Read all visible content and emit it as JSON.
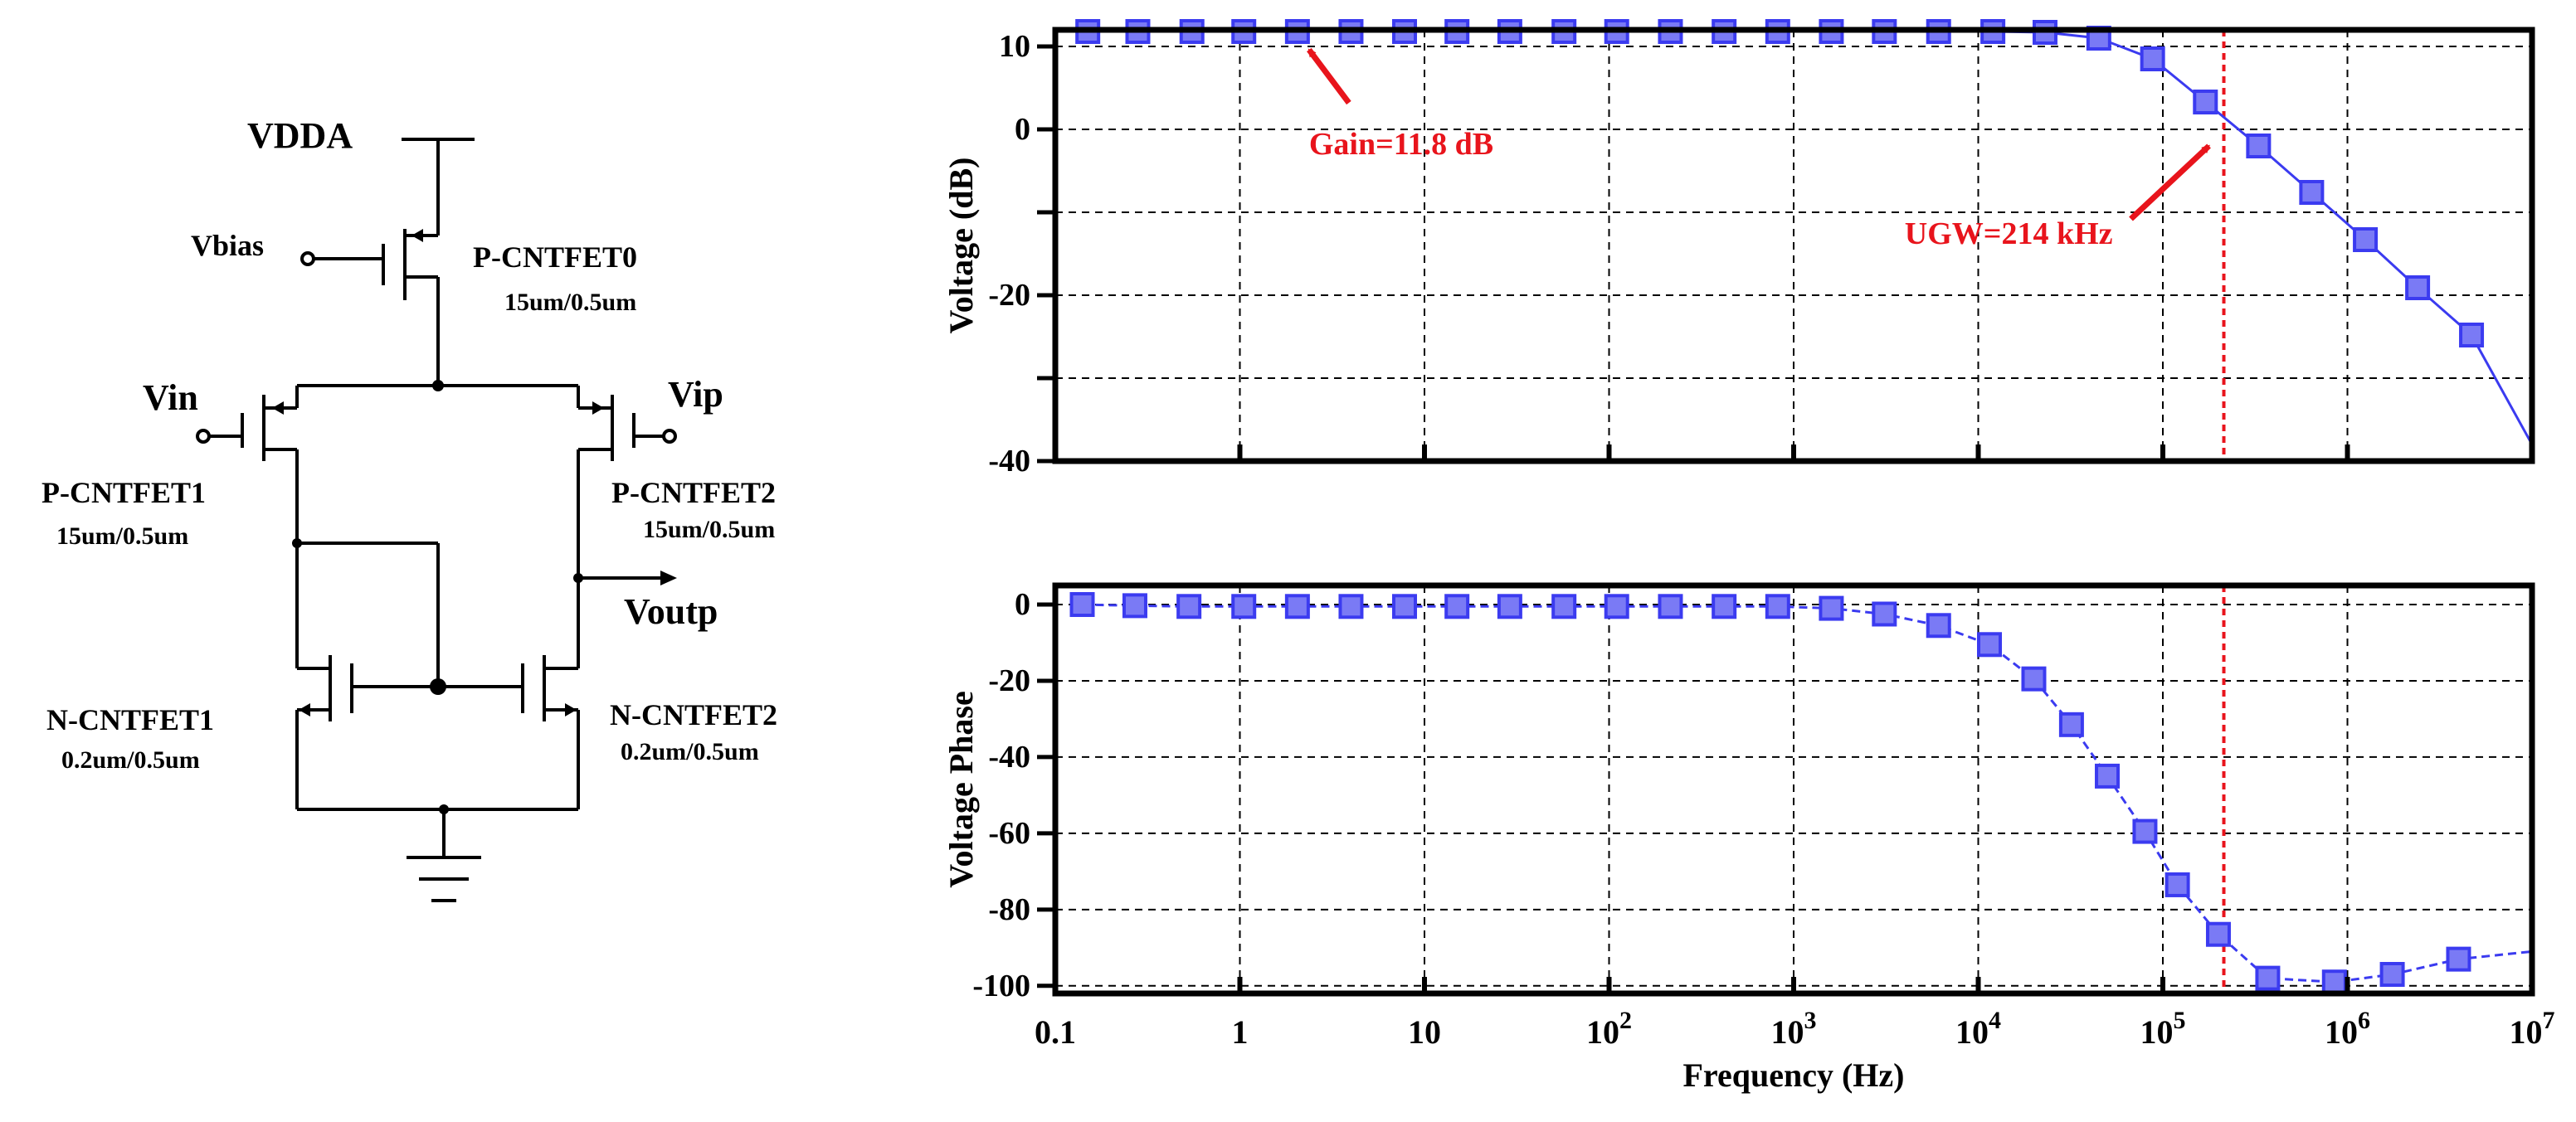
{
  "circuit": {
    "vdd_label": "VDDA",
    "vbias_label": "Vbias",
    "vin_label": "Vin",
    "vip_label": "Vip",
    "vout_label": "Voutp",
    "transistors": [
      {
        "name": "P-CNTFET0",
        "size": "15um/0.5um"
      },
      {
        "name": "P-CNTFET1",
        "size": "15um/0.5um"
      },
      {
        "name": "P-CNTFET2",
        "size": "15um/0.5um"
      },
      {
        "name": "N-CNTFET1",
        "size": "0.2um/0.5um"
      },
      {
        "name": "N-CNTFET2",
        "size": "0.2um/0.5um"
      }
    ]
  },
  "colors": {
    "series": "#3b3bf0",
    "marker_fill": "#7a7af5",
    "annotation": "#e8141c",
    "axis": "#000000",
    "grid": "#000000"
  },
  "chart_data": [
    {
      "type": "line",
      "xscale": "log",
      "xlim": [
        0.1,
        10000000
      ],
      "ylim": [
        -40,
        12
      ],
      "ylabel": "Voltage (dB)",
      "grid": true,
      "x_ticks": [
        0.1,
        1,
        10,
        100,
        1000,
        10000,
        100000,
        1000000,
        10000000
      ],
      "y_ticks": [
        10,
        0,
        -20,
        -40
      ],
      "series": [
        {
          "x": [
            0.1,
            0.15,
            0.28,
            0.55,
            1.05,
            2.05,
            4.0,
            7.8,
            15,
            29,
            57,
            110,
            215,
            420,
            820,
            1600,
            3100,
            6100,
            12000,
            23000,
            45000,
            88000,
            170000,
            330000,
            640000,
            1250000,
            2400000,
            4700000,
            10000000
          ],
          "y": [
            11.8,
            11.8,
            11.8,
            11.8,
            11.8,
            11.8,
            11.8,
            11.8,
            11.8,
            11.8,
            11.8,
            11.8,
            11.8,
            11.8,
            11.8,
            11.8,
            11.8,
            11.8,
            11.8,
            11.7,
            11.0,
            8.5,
            3.3,
            -2.0,
            -7.6,
            -13.3,
            -19.1,
            -24.8,
            -38.0
          ],
          "markers": [
            false,
            true,
            true,
            true,
            true,
            true,
            true,
            true,
            true,
            true,
            true,
            true,
            true,
            true,
            true,
            true,
            true,
            true,
            true,
            true,
            true,
            true,
            true,
            true,
            true,
            true,
            true,
            true,
            false
          ]
        }
      ],
      "annotations": [
        {
          "text": "Gain=11.8 dB",
          "x": 2.05,
          "y": 11.8
        },
        {
          "text": "UGW=214 kHz",
          "x": 214000,
          "y": 0
        }
      ],
      "reference_line_x": 214000
    },
    {
      "type": "line",
      "xscale": "log",
      "xlim": [
        0.1,
        10000000
      ],
      "ylim": [
        -102,
        5
      ],
      "ylabel": "Voltage Phase",
      "xlabel": "Frequency (Hz)",
      "grid": true,
      "x_ticks": [
        0.1,
        1,
        10,
        100,
        1000,
        10000,
        100000,
        1000000,
        10000000
      ],
      "x_tick_labels": [
        {
          "base": "0.1",
          "exp": ""
        },
        {
          "base": "1",
          "exp": ""
        },
        {
          "base": "10",
          "exp": ""
        },
        {
          "base": "10",
          "exp": "2"
        },
        {
          "base": "10",
          "exp": "3"
        },
        {
          "base": "10",
          "exp": "4"
        },
        {
          "base": "10",
          "exp": "5"
        },
        {
          "base": "10",
          "exp": "6"
        },
        {
          "base": "10",
          "exp": "7"
        }
      ],
      "y_ticks": [
        0,
        -20,
        -40,
        -60,
        -80,
        -100
      ],
      "series": [
        {
          "x": [
            0.14,
            0.27,
            0.53,
            1.05,
            2.05,
            4.0,
            7.8,
            15,
            29,
            57,
            110,
            215,
            420,
            820,
            1600,
            3100,
            6100,
            11500,
            20000,
            32000,
            50000,
            80000,
            120000,
            200000,
            370000,
            850000,
            1750000,
            4000000,
            10000000
          ],
          "y": [
            0,
            -0.3,
            -0.5,
            -0.5,
            -0.5,
            -0.5,
            -0.5,
            -0.5,
            -0.5,
            -0.5,
            -0.5,
            -0.5,
            -0.5,
            -0.5,
            -1,
            -2.5,
            -5.5,
            -10.5,
            -19.5,
            -31.5,
            -45,
            -59.5,
            -73.5,
            -86.5,
            -98,
            -99,
            -97,
            -93,
            -91
          ],
          "markers": [
            true,
            true,
            true,
            true,
            true,
            true,
            true,
            true,
            true,
            true,
            true,
            true,
            true,
            true,
            true,
            true,
            true,
            true,
            true,
            true,
            true,
            true,
            true,
            true,
            true,
            true,
            true,
            true,
            false
          ]
        }
      ],
      "reference_line_x": 214000
    }
  ]
}
